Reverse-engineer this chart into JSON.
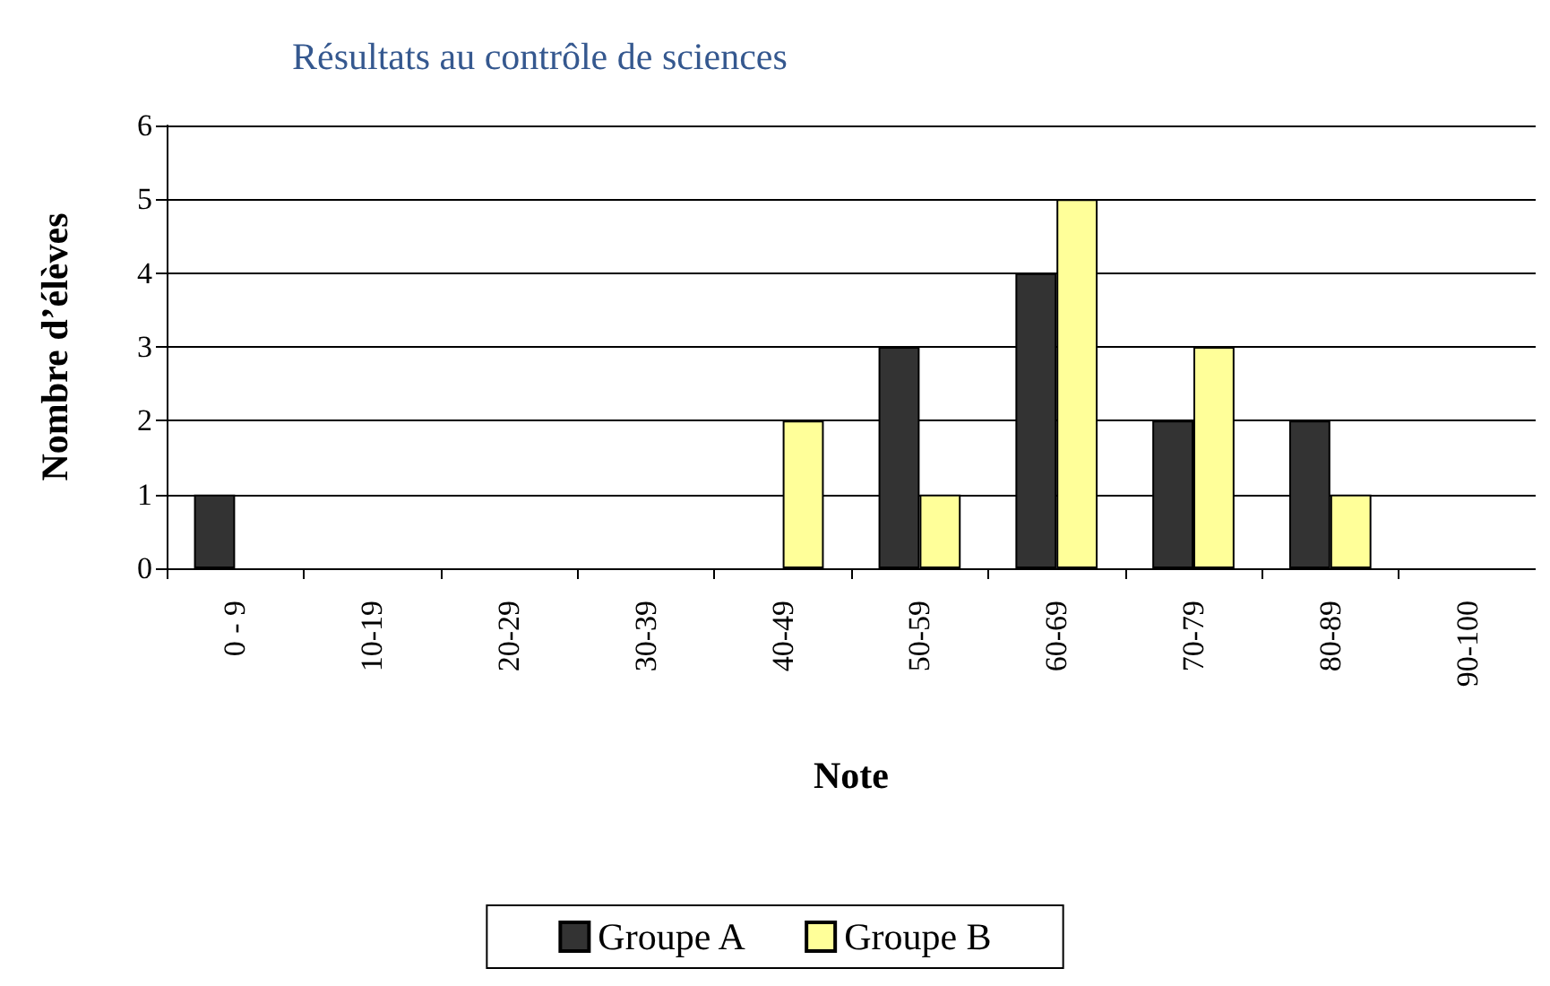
{
  "chart_data": {
    "type": "bar",
    "title": "Résultats au contrôle de sciences",
    "xlabel": "Note",
    "ylabel": "Nombre d’élèves",
    "categories": [
      "0 - 9",
      "10-19",
      "20-29",
      "30-39",
      "40-49",
      "50-59",
      "60-69",
      "70-79",
      "80-89",
      "90-100"
    ],
    "series": [
      {
        "name": "Groupe A",
        "color": "#333333",
        "values": [
          1,
          0,
          0,
          0,
          0,
          3,
          4,
          2,
          2,
          0
        ]
      },
      {
        "name": "Groupe B",
        "color": "#ffff99",
        "values": [
          0,
          0,
          0,
          0,
          2,
          1,
          5,
          3,
          1,
          0
        ]
      }
    ],
    "ylim": [
      0,
      6
    ],
    "yticks": [
      0,
      1,
      2,
      3,
      4,
      5,
      6
    ],
    "grid": "y",
    "legend": "bottom"
  }
}
